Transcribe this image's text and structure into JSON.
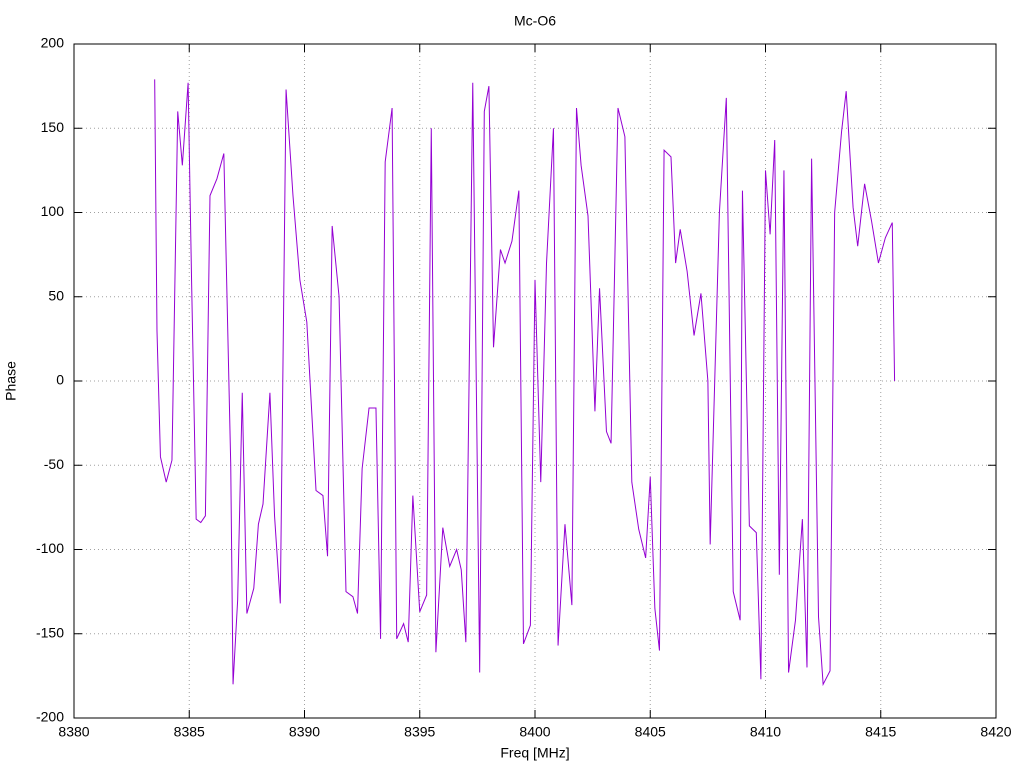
{
  "chart_data": {
    "type": "line",
    "title": "Mc-O6",
    "xlabel": "Freq [MHz]",
    "ylabel": "Phase",
    "x": [
      8383.5,
      8383.6,
      8383.75,
      8384.0,
      8384.25,
      8384.5,
      8384.7,
      8384.95,
      8385.1,
      8385.3,
      8385.5,
      8385.7,
      8385.9,
      8386.2,
      8386.5,
      8386.8,
      8386.9,
      8387.1,
      8387.3,
      8387.5,
      8387.8,
      8388.0,
      8388.2,
      8388.5,
      8388.7,
      8388.95,
      8389.2,
      8389.5,
      8389.8,
      8390.1,
      8390.5,
      8390.8,
      8391.0,
      8391.2,
      8391.5,
      8391.8,
      8392.1,
      8392.3,
      8392.5,
      8392.8,
      8393.1,
      8393.3,
      8393.5,
      8393.8,
      8394.0,
      8394.3,
      8394.5,
      8394.7,
      8395.0,
      8395.3,
      8395.5,
      8395.7,
      8396.0,
      8396.3,
      8396.6,
      8396.8,
      8397.0,
      8397.3,
      8397.6,
      8397.8,
      8398.0,
      8398.2,
      8398.5,
      8398.7,
      8399.0,
      8399.3,
      8399.5,
      8399.8,
      8400.0,
      8400.25,
      8400.5,
      8400.8,
      8401.0,
      8401.3,
      8401.6,
      8401.8,
      8402.0,
      8402.3,
      8402.6,
      8402.8,
      8403.1,
      8403.3,
      8403.6,
      8403.9,
      8404.2,
      8404.5,
      8404.8,
      8405.0,
      8405.2,
      8405.4,
      8405.6,
      8405.9,
      8406.1,
      8406.3,
      8406.6,
      8406.9,
      8407.2,
      8407.5,
      8407.6,
      8408.0,
      8408.3,
      8408.6,
      8408.9,
      8409.0,
      8409.3,
      8409.6,
      8409.8,
      8410.0,
      8410.2,
      8410.4,
      8410.6,
      8410.8,
      8411.0,
      8411.3,
      8411.6,
      8411.8,
      8412.0,
      8412.3,
      8412.5,
      8412.8,
      8413.0,
      8413.3,
      8413.5,
      8413.8,
      8414.0,
      8414.3,
      8414.6,
      8414.9,
      8415.2,
      8415.5,
      8415.6
    ],
    "series": [
      {
        "name": "Phase",
        "color": "#9400d3",
        "values": [
          179,
          30,
          -45,
          -60,
          -47,
          160,
          128,
          177,
          60,
          -82,
          -84,
          -80,
          110,
          120,
          135,
          -50,
          -180,
          -130,
          -7,
          -138,
          -123,
          -85,
          -73,
          -7,
          -80,
          -132,
          173,
          110,
          60,
          35,
          -65,
          -68,
          -104,
          92,
          50,
          -125,
          -128,
          -138,
          -52,
          -16,
          -16,
          -153,
          130,
          162,
          -153,
          -144,
          -155,
          -68,
          -137,
          -127,
          150,
          -161,
          -87,
          -110,
          -100,
          -112,
          -155,
          177,
          -173,
          160,
          175,
          20,
          78,
          70,
          83,
          113,
          -156,
          -145,
          60,
          -60,
          70,
          150,
          -157,
          -85,
          -133,
          162,
          128,
          98,
          -18,
          55,
          -30,
          -37,
          162,
          145,
          -60,
          -88,
          -105,
          -57,
          -135,
          -160,
          137,
          133,
          70,
          90,
          65,
          27,
          52,
          0,
          -97,
          100,
          168,
          -125,
          -142,
          113,
          -86,
          -90,
          -177,
          125,
          87,
          143,
          -115,
          125,
          -173,
          -142,
          -82,
          -170,
          132,
          -140,
          -180,
          -172,
          100,
          148,
          172,
          103,
          80,
          117,
          95,
          70,
          85,
          94,
          0
        ]
      }
    ],
    "xlim": [
      8380,
      8420
    ],
    "xticks": [
      8380,
      8385,
      8390,
      8395,
      8400,
      8405,
      8410,
      8415,
      8420
    ],
    "ylim": [
      -200,
      200
    ],
    "yticks": [
      -200,
      -150,
      -100,
      -50,
      0,
      50,
      100,
      150,
      200
    ],
    "grid": true
  }
}
